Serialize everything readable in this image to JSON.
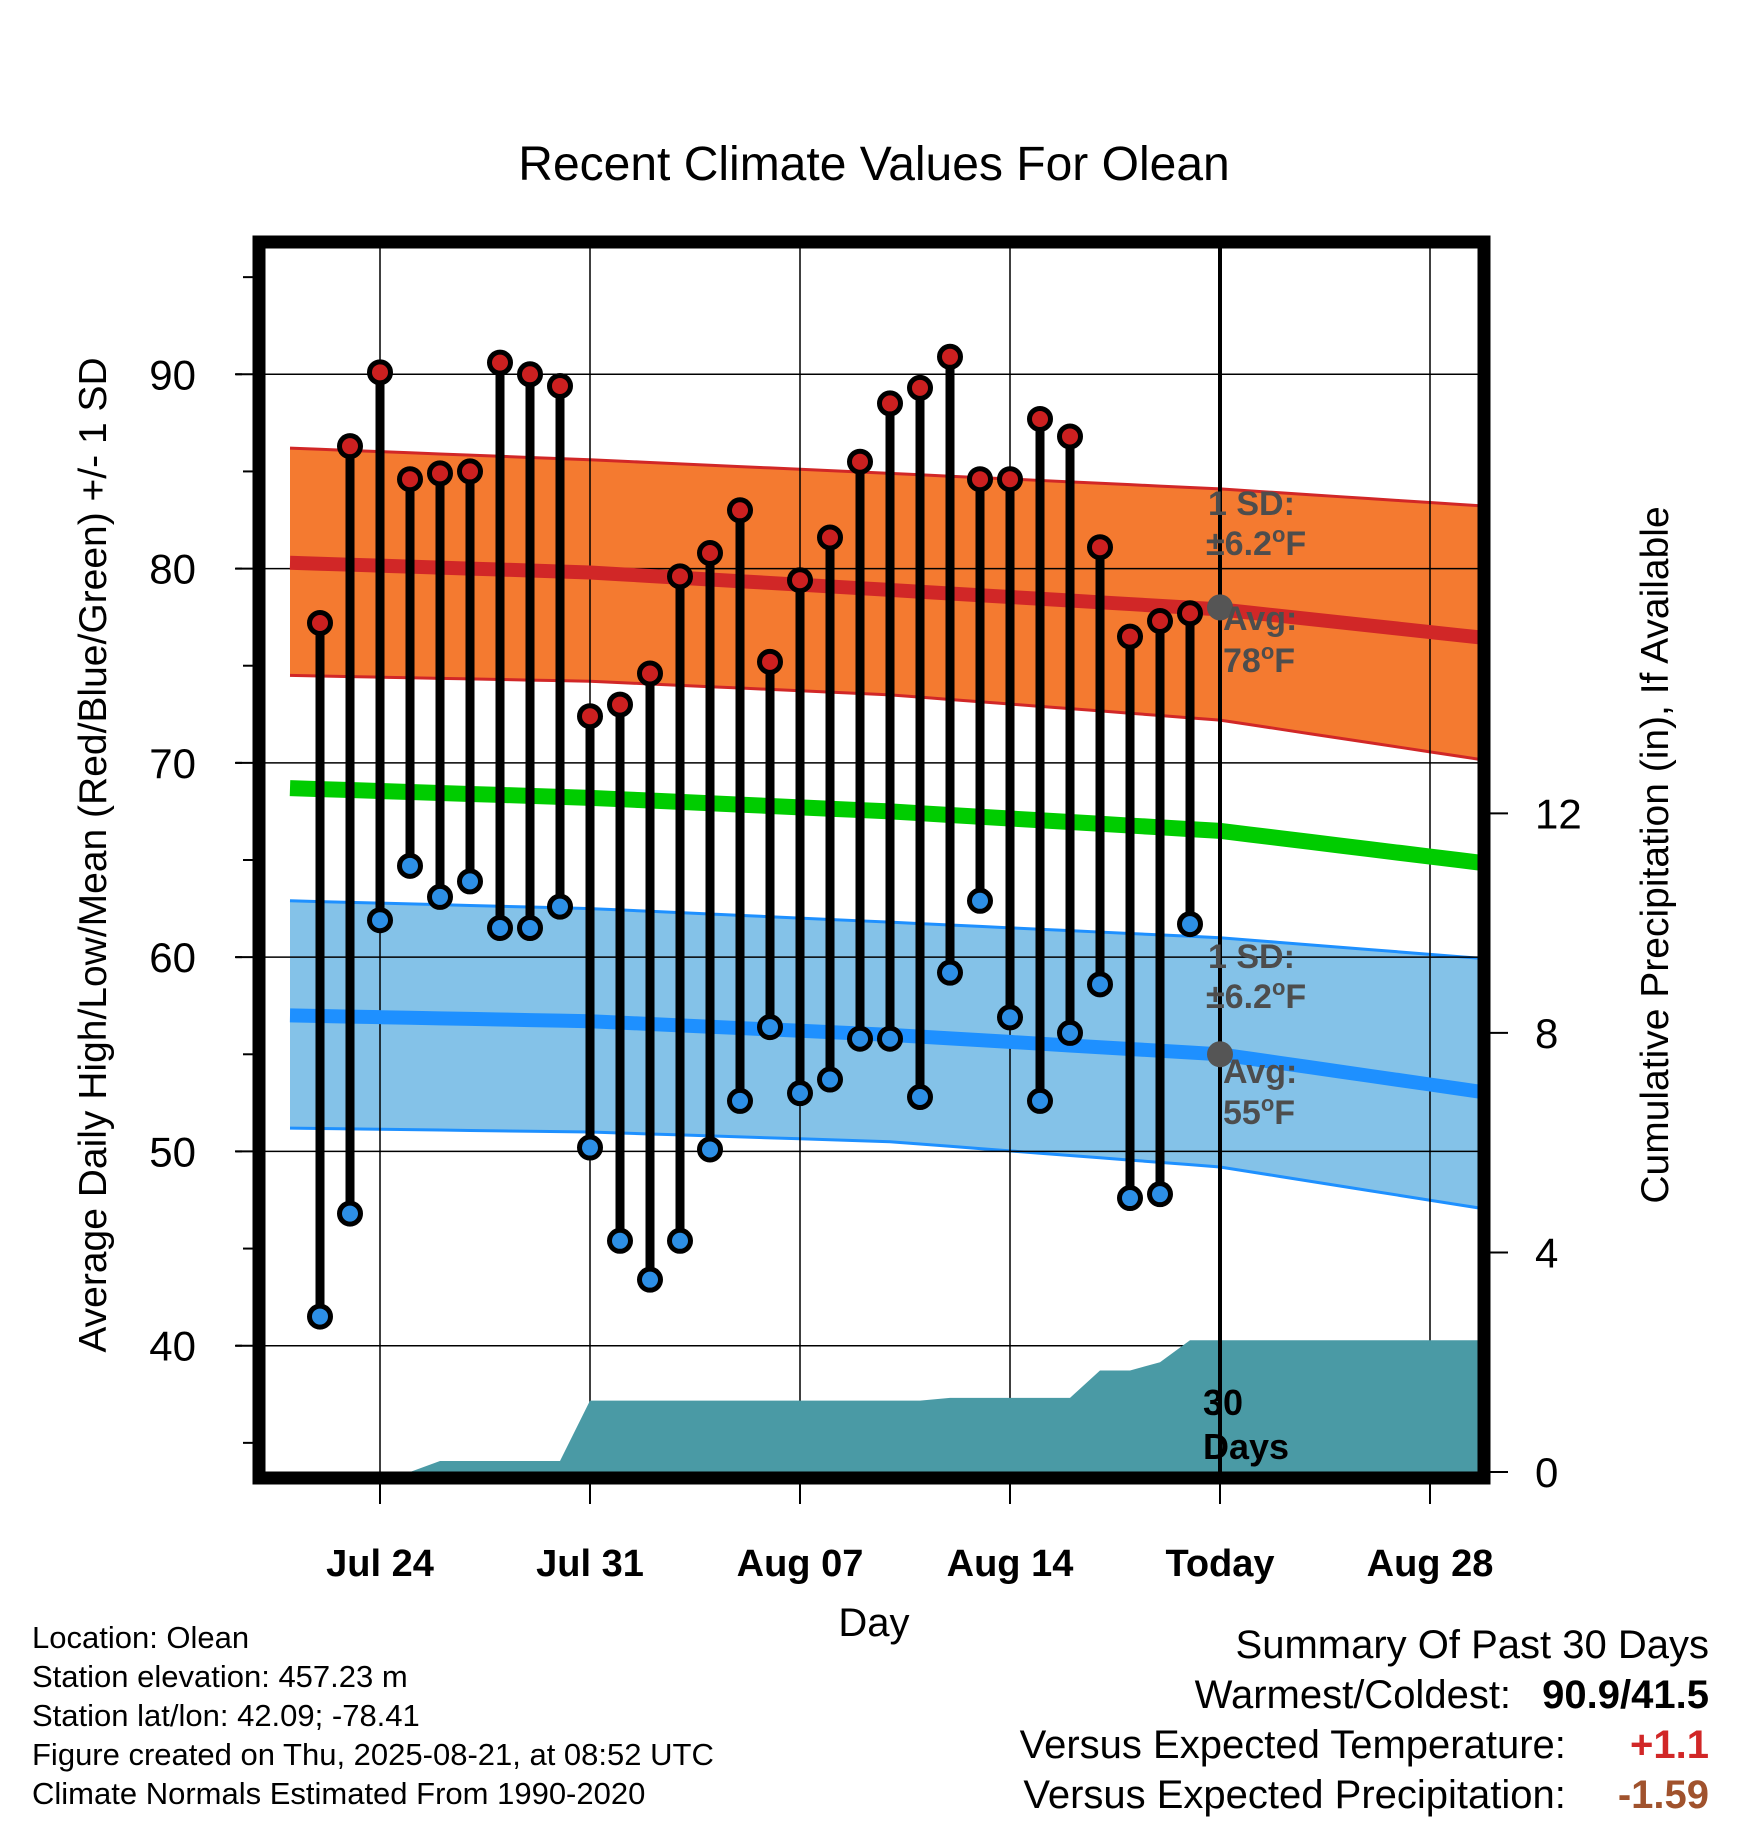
{
  "chart_data": {
    "type": "line",
    "title": "Recent Climate Values For Olean",
    "xlabel": "Day",
    "ylabel": "Average Daily High/Low/Mean (Red/Blue/Green) +/- 1 SD",
    "y2label": "Cumulative Precipitation (in), If Available",
    "ylim": [
      33.5,
      96.5
    ],
    "y2lim": [
      0,
      22.3
    ],
    "yticks": [
      40,
      50,
      60,
      70,
      80,
      90
    ],
    "y2ticks": [
      0,
      4,
      8,
      12
    ],
    "xticks": [
      "Jul 24",
      "Jul 31",
      "Aug 07",
      "Aug 14",
      "Today",
      "Aug 28"
    ],
    "grid": true,
    "dates": [
      "2025-07-21",
      "2025-07-22",
      "2025-07-23",
      "2025-07-24",
      "2025-07-25",
      "2025-07-26",
      "2025-07-27",
      "2025-07-28",
      "2025-07-29",
      "2025-07-30",
      "2025-07-31",
      "2025-08-01",
      "2025-08-02",
      "2025-08-03",
      "2025-08-04",
      "2025-08-05",
      "2025-08-06",
      "2025-08-07",
      "2025-08-08",
      "2025-08-09",
      "2025-08-10",
      "2025-08-11",
      "2025-08-12",
      "2025-08-13",
      "2025-08-14",
      "2025-08-15",
      "2025-08-16",
      "2025-08-17",
      "2025-08-18",
      "2025-08-19",
      "2025-08-20",
      "2025-08-21",
      "2025-08-22",
      "2025-08-23",
      "2025-08-24",
      "2025-08-25",
      "2025-08-26",
      "2025-08-27",
      "2025-08-28",
      "2025-08-29",
      "2025-08-30"
    ],
    "observed": {
      "dates": [
        "2025-07-22",
        "2025-07-23",
        "2025-07-24",
        "2025-07-25",
        "2025-07-26",
        "2025-07-27",
        "2025-07-28",
        "2025-07-29",
        "2025-07-30",
        "2025-07-31",
        "2025-08-01",
        "2025-08-02",
        "2025-08-03",
        "2025-08-04",
        "2025-08-05",
        "2025-08-06",
        "2025-08-07",
        "2025-08-08",
        "2025-08-09",
        "2025-08-10",
        "2025-08-11",
        "2025-08-12",
        "2025-08-13",
        "2025-08-14",
        "2025-08-15",
        "2025-08-16",
        "2025-08-17",
        "2025-08-18",
        "2025-08-19",
        "2025-08-20"
      ],
      "high": [
        77.2,
        86.3,
        90.1,
        84.6,
        84.9,
        85.0,
        90.6,
        90.0,
        89.4,
        72.4,
        73.0,
        74.6,
        79.6,
        80.8,
        83.0,
        75.2,
        79.4,
        81.6,
        85.5,
        88.5,
        89.3,
        90.9,
        84.6,
        84.6,
        87.7,
        86.8,
        81.1,
        76.5,
        77.3,
        77.7
      ],
      "low": [
        41.5,
        46.8,
        61.9,
        64.7,
        63.1,
        63.9,
        61.5,
        61.5,
        62.6,
        50.2,
        45.4,
        43.4,
        45.4,
        50.1,
        52.6,
        56.4,
        53.0,
        53.7,
        55.8,
        55.8,
        52.8,
        59.2,
        62.9,
        56.9,
        52.6,
        56.1,
        58.6,
        47.6,
        47.8,
        61.7
      ]
    },
    "normals": {
      "dates": [
        "2025-07-21",
        "2025-07-31",
        "2025-08-10",
        "2025-08-21",
        "2025-08-30"
      ],
      "high_avg": [
        80.3,
        79.8,
        78.9,
        77.9,
        76.4
      ],
      "high_plus_1sd": [
        86.2,
        85.6,
        84.9,
        84.1,
        83.2
      ],
      "high_minus_1sd": [
        74.5,
        74.2,
        73.5,
        72.2,
        70.1
      ],
      "mean_avg": [
        68.7,
        68.2,
        67.5,
        66.5,
        64.8
      ],
      "low_avg": [
        57.0,
        56.7,
        56.0,
        55.0,
        53.0
      ],
      "low_plus_1sd": [
        62.9,
        62.5,
        61.8,
        61.0,
        59.9
      ],
      "low_minus_1sd": [
        51.2,
        51.0,
        50.5,
        49.2,
        47.0
      ]
    },
    "precipitation_cumulative": {
      "dates": [
        "2025-07-21",
        "2025-07-25",
        "2025-07-26",
        "2025-07-29",
        "2025-07-30",
        "2025-07-31",
        "2025-08-11",
        "2025-08-12",
        "2025-08-13",
        "2025-08-16",
        "2025-08-17",
        "2025-08-18",
        "2025-08-19",
        "2025-08-20",
        "2025-08-21",
        "2025-08-30"
      ],
      "values": [
        0,
        0,
        0.2,
        0.2,
        0.2,
        1.3,
        1.3,
        1.35,
        1.35,
        1.35,
        1.85,
        1.85,
        2.0,
        2.4,
        2.4,
        2.4
      ]
    },
    "annotations": {
      "high_sd_label": "1 SD:",
      "high_sd_value": "±6.2°F",
      "high_avg_label": "Avg:",
      "high_avg_value": "78°F",
      "low_sd_label": "1 SD:",
      "low_sd_value": "±6.2°F",
      "low_avg_label": "Avg:",
      "low_avg_value": "55°F",
      "precip_days": "30",
      "precip_days_label": "Days"
    },
    "today_high_avg": 78,
    "today_low_avg": 55
  },
  "colors": {
    "high_band": "#f47a30",
    "high_avg": "#d12727",
    "high_marker": "#cc2020",
    "low_band": "#84c2e8",
    "low_avg": "#1e90ff",
    "low_marker": "#2d8fe6",
    "mean": "#00cc00",
    "precip": "#4a9aa5",
    "annotation": "#4d4d4d"
  },
  "info": {
    "location": "Location: Olean",
    "elevation": "Station elevation: 457.23 m",
    "latlon": "Station lat/lon: 42.09; -78.41",
    "created": "Figure created on Thu, 2025-08-21, at 08:52 UTC",
    "normals": "Climate Normals Estimated From 1990-2020"
  },
  "summary": {
    "title": "Summary Of Past 30 Days",
    "warm_cold_label": "Warmest/Coldest:",
    "warm_cold_value": "90.9/41.5",
    "temp_label": "Versus Expected Temperature:",
    "temp_value": "+1.1",
    "temp_color": "#d12727",
    "precip_label": "Versus Expected Precipitation:",
    "precip_value": "-1.59",
    "precip_color": "#a0522d"
  }
}
